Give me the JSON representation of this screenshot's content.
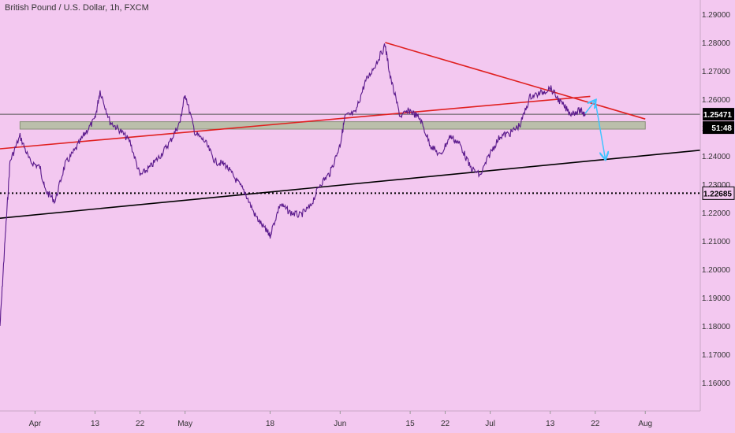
{
  "chart_data": {
    "type": "line",
    "title": "British Pound / U.S. Dollar, 1h, FXCM",
    "x_ticks": [
      {
        "label": "Apr",
        "x": "2020-04-01"
      },
      {
        "label": "13",
        "x": "2020-04-13"
      },
      {
        "label": "22",
        "x": "2020-04-22"
      },
      {
        "label": "May",
        "x": "2020-05-01"
      },
      {
        "label": "18",
        "x": "2020-05-18"
      },
      {
        "label": "Jun",
        "x": "2020-06-01"
      },
      {
        "label": "15",
        "x": "2020-06-15"
      },
      {
        "label": "22",
        "x": "2020-06-22"
      },
      {
        "label": "Jul",
        "x": "2020-07-01"
      },
      {
        "label": "13",
        "x": "2020-07-13"
      },
      {
        "label": "22",
        "x": "2020-07-22"
      },
      {
        "label": "Aug",
        "x": "2020-08-01"
      }
    ],
    "y_ticks": [
      "1.29000",
      "1.28000",
      "1.27000",
      "1.26000",
      "1.25000",
      "1.24000",
      "1.23000",
      "1.22000",
      "1.21000",
      "1.20000",
      "1.19000",
      "1.18000",
      "1.17000",
      "1.16000"
    ],
    "ylim": [
      1.15,
      1.295
    ],
    "xlim": [
      "2020-03-25",
      "2020-08-12"
    ],
    "series": [
      {
        "values": [
          [
            "2020-03-25",
            1.18
          ],
          [
            "2020-03-26",
            1.21
          ],
          [
            "2020-03-27",
            1.238
          ],
          [
            "2020-03-29",
            1.247
          ],
          [
            "2020-03-31",
            1.238
          ],
          [
            "2020-04-02",
            1.236
          ],
          [
            "2020-04-03",
            1.228
          ],
          [
            "2020-04-05",
            1.224
          ],
          [
            "2020-04-07",
            1.237
          ],
          [
            "2020-04-09",
            1.242
          ],
          [
            "2020-04-11",
            1.248
          ],
          [
            "2020-04-13",
            1.253
          ],
          [
            "2020-04-14",
            1.263
          ],
          [
            "2020-04-16",
            1.252
          ],
          [
            "2020-04-18",
            1.249
          ],
          [
            "2020-04-20",
            1.245
          ],
          [
            "2020-04-22",
            1.233
          ],
          [
            "2020-04-24",
            1.236
          ],
          [
            "2020-04-26",
            1.24
          ],
          [
            "2020-04-28",
            1.245
          ],
          [
            "2020-04-30",
            1.252
          ],
          [
            "2020-05-01",
            1.262
          ],
          [
            "2020-05-03",
            1.248
          ],
          [
            "2020-05-05",
            1.245
          ],
          [
            "2020-05-07",
            1.238
          ],
          [
            "2020-05-09",
            1.237
          ],
          [
            "2020-05-11",
            1.232
          ],
          [
            "2020-05-13",
            1.227
          ],
          [
            "2020-05-15",
            1.219
          ],
          [
            "2020-05-17",
            1.214
          ],
          [
            "2020-05-18",
            1.212
          ],
          [
            "2020-05-20",
            1.223
          ],
          [
            "2020-05-22",
            1.22
          ],
          [
            "2020-05-24",
            1.219
          ],
          [
            "2020-05-26",
            1.222
          ],
          [
            "2020-05-28",
            1.23
          ],
          [
            "2020-05-30",
            1.234
          ],
          [
            "2020-06-01",
            1.244
          ],
          [
            "2020-06-02",
            1.254
          ],
          [
            "2020-06-04",
            1.255
          ],
          [
            "2020-06-06",
            1.266
          ],
          [
            "2020-06-08",
            1.272
          ],
          [
            "2020-06-10",
            1.279
          ],
          [
            "2020-06-11",
            1.268
          ],
          [
            "2020-06-13",
            1.254
          ],
          [
            "2020-06-15",
            1.256
          ],
          [
            "2020-06-17",
            1.253
          ],
          [
            "2020-06-19",
            1.244
          ],
          [
            "2020-06-21",
            1.24
          ],
          [
            "2020-06-23",
            1.247
          ],
          [
            "2020-06-25",
            1.244
          ],
          [
            "2020-06-27",
            1.236
          ],
          [
            "2020-06-29",
            1.233
          ],
          [
            "2020-07-01",
            1.241
          ],
          [
            "2020-07-03",
            1.247
          ],
          [
            "2020-07-05",
            1.248
          ],
          [
            "2020-07-07",
            1.251
          ],
          [
            "2020-07-09",
            1.261
          ],
          [
            "2020-07-11",
            1.262
          ],
          [
            "2020-07-13",
            1.264
          ],
          [
            "2020-07-15",
            1.259
          ],
          [
            "2020-07-17",
            1.255
          ],
          [
            "2020-07-19",
            1.256
          ],
          [
            "2020-07-20",
            1.2547
          ]
        ]
      }
    ],
    "horizontal_lines": [
      {
        "y": 1.2547,
        "label": "1.25471",
        "style": "solid",
        "color": "#555555"
      },
      {
        "y": 1.22685,
        "label": "1.22685",
        "style": "dotted",
        "color": "#000000"
      }
    ],
    "price_tags": [
      {
        "text": "1.25471",
        "bg": "#000000",
        "fg": "#ffffff"
      },
      {
        "text": "51:48",
        "bg": "#000000",
        "fg": "#ffffff"
      },
      {
        "text": "1.22685",
        "bg": "#f3c8f0",
        "fg": "#000000"
      }
    ],
    "zone": {
      "from": 1.25,
      "to": 1.2515,
      "x_from": "2020-03-29",
      "x_to": "2020-08-01",
      "color": "#b6bfa4"
    },
    "trendlines": [
      {
        "from": [
          "2020-03-25",
          1.2425
        ],
        "to": [
          "2020-07-21",
          1.261
        ],
        "color": "#e02020"
      },
      {
        "from": [
          "2020-06-10",
          1.28
        ],
        "to": [
          "2020-08-01",
          1.253
        ],
        "color": "#e02020"
      },
      {
        "from": [
          "2020-03-25",
          1.218
        ],
        "to": [
          "2020-08-12",
          1.242
        ],
        "color": "#000000"
      }
    ],
    "arrows": [
      {
        "from": [
          "2020-07-20",
          1.255
        ],
        "to": [
          "2020-07-22",
          1.2595
        ],
        "color": "#40c4ff"
      },
      {
        "from": [
          "2020-07-22",
          1.2595
        ],
        "to": [
          "2020-07-24",
          1.239
        ],
        "color": "#40c4ff"
      }
    ],
    "colors": {
      "background": "#f3c8f0",
      "price": "#5a1a8c",
      "axis_text": "#333333"
    },
    "grid": false,
    "legend": "none"
  }
}
